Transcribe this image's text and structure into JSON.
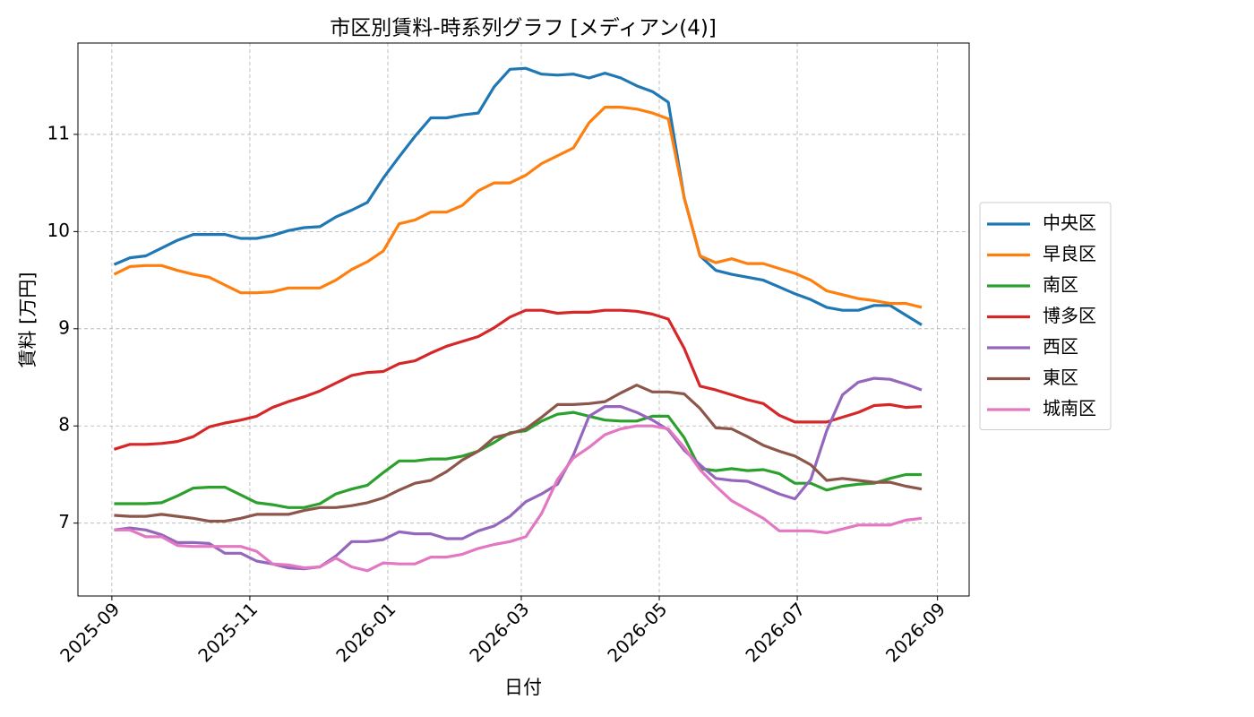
{
  "chart_data": {
    "type": "line",
    "title": "市区別賃料-時系列グラフ [メディアン(4)]",
    "xlabel": "日付",
    "ylabel": "賃料 [万円]",
    "x": [
      "2025-09-02",
      "2025-09-09",
      "2025-09-16",
      "2025-09-23",
      "2025-09-30",
      "2025-10-07",
      "2025-10-14",
      "2025-10-21",
      "2025-10-28",
      "2025-11-04",
      "2025-11-11",
      "2025-11-18",
      "2025-11-25",
      "2025-12-02",
      "2025-12-09",
      "2025-12-16",
      "2025-12-23",
      "2025-12-30",
      "2026-01-06",
      "2026-01-13",
      "2026-01-20",
      "2026-01-27",
      "2026-02-03",
      "2026-02-10",
      "2026-02-17",
      "2026-02-24",
      "2026-03-03",
      "2026-03-10",
      "2026-03-17",
      "2026-03-24",
      "2026-03-31",
      "2026-04-07",
      "2026-04-14",
      "2026-04-21",
      "2026-04-28",
      "2026-05-05",
      "2026-05-12",
      "2026-05-19",
      "2026-05-26",
      "2026-06-02",
      "2026-06-09",
      "2026-06-16",
      "2026-06-23",
      "2026-06-30",
      "2026-07-07",
      "2026-07-14",
      "2026-07-21",
      "2026-07-28",
      "2026-08-04",
      "2026-08-11",
      "2026-08-18",
      "2026-08-25"
    ],
    "series": [
      {
        "name": "中央区",
        "color": "#1f77b4",
        "values": [
          9.66,
          9.73,
          9.75,
          9.83,
          9.91,
          9.97,
          9.97,
          9.97,
          9.93,
          9.93,
          9.96,
          10.01,
          10.04,
          10.05,
          10.15,
          10.22,
          10.3,
          10.55,
          10.77,
          10.98,
          11.17,
          11.17,
          11.2,
          11.22,
          11.49,
          11.67,
          11.68,
          11.62,
          11.61,
          11.62,
          11.58,
          11.63,
          11.58,
          11.5,
          11.44,
          11.33,
          10.35,
          9.75,
          9.6,
          9.56,
          9.53,
          9.5,
          9.43,
          9.36,
          9.3,
          9.22,
          9.19,
          9.19,
          9.24,
          9.24,
          9.14,
          9.04
        ]
      },
      {
        "name": "早良区",
        "color": "#ff7f0e",
        "values": [
          9.56,
          9.64,
          9.65,
          9.65,
          9.6,
          9.56,
          9.53,
          9.45,
          9.37,
          9.37,
          9.38,
          9.42,
          9.42,
          9.42,
          9.5,
          9.61,
          9.69,
          9.8,
          10.08,
          10.12,
          10.2,
          10.2,
          10.27,
          10.42,
          10.5,
          10.5,
          10.58,
          10.7,
          10.78,
          10.86,
          11.12,
          11.28,
          11.28,
          11.26,
          11.22,
          11.16,
          10.35,
          9.75,
          9.68,
          9.72,
          9.67,
          9.67,
          9.62,
          9.57,
          9.5,
          9.39,
          9.35,
          9.31,
          9.29,
          9.26,
          9.26,
          9.22
        ]
      },
      {
        "name": "南区",
        "color": "#2ca02c",
        "values": [
          7.2,
          7.2,
          7.2,
          7.21,
          7.28,
          7.36,
          7.37,
          7.37,
          7.29,
          7.21,
          7.19,
          7.16,
          7.16,
          7.2,
          7.3,
          7.35,
          7.39,
          7.52,
          7.64,
          7.64,
          7.66,
          7.66,
          7.69,
          7.74,
          7.83,
          7.93,
          7.95,
          8.05,
          8.12,
          8.14,
          8.1,
          8.06,
          8.05,
          8.05,
          8.1,
          8.1,
          7.88,
          7.56,
          7.54,
          7.56,
          7.54,
          7.55,
          7.51,
          7.41,
          7.41,
          7.34,
          7.38,
          7.4,
          7.41,
          7.46,
          7.5,
          7.5
        ]
      },
      {
        "name": "博多区",
        "color": "#d62728",
        "values": [
          7.76,
          7.81,
          7.81,
          7.82,
          7.84,
          7.89,
          7.99,
          8.03,
          8.06,
          8.1,
          8.19,
          8.25,
          8.3,
          8.36,
          8.44,
          8.52,
          8.55,
          8.56,
          8.64,
          8.67,
          8.75,
          8.82,
          8.87,
          8.92,
          9.01,
          9.12,
          9.19,
          9.19,
          9.16,
          9.17,
          9.17,
          9.19,
          9.19,
          9.18,
          9.15,
          9.1,
          8.8,
          8.41,
          8.37,
          8.32,
          8.27,
          8.23,
          8.11,
          8.04,
          8.04,
          8.04,
          8.09,
          8.14,
          8.21,
          8.22,
          8.19,
          8.2
        ]
      },
      {
        "name": "西区",
        "color": "#9467bd",
        "values": [
          6.93,
          6.95,
          6.93,
          6.88,
          6.8,
          6.8,
          6.79,
          6.69,
          6.69,
          6.61,
          6.58,
          6.54,
          6.53,
          6.55,
          6.66,
          6.81,
          6.81,
          6.83,
          6.91,
          6.89,
          6.89,
          6.84,
          6.84,
          6.92,
          6.97,
          7.07,
          7.22,
          7.3,
          7.4,
          7.7,
          8.1,
          8.2,
          8.2,
          8.14,
          8.06,
          7.96,
          7.75,
          7.6,
          7.46,
          7.44,
          7.43,
          7.37,
          7.3,
          7.25,
          7.45,
          7.95,
          8.32,
          8.45,
          8.49,
          8.48,
          8.43,
          8.37
        ]
      },
      {
        "name": "東区",
        "color": "#8c564b",
        "values": [
          7.08,
          7.07,
          7.07,
          7.09,
          7.07,
          7.05,
          7.02,
          7.02,
          7.05,
          7.09,
          7.09,
          7.09,
          7.13,
          7.16,
          7.16,
          7.18,
          7.21,
          7.26,
          7.34,
          7.41,
          7.44,
          7.53,
          7.65,
          7.74,
          7.88,
          7.92,
          7.97,
          8.09,
          8.22,
          8.22,
          8.23,
          8.25,
          8.34,
          8.42,
          8.35,
          8.35,
          8.33,
          8.18,
          7.98,
          7.97,
          7.89,
          7.8,
          7.74,
          7.69,
          7.6,
          7.44,
          7.46,
          7.44,
          7.42,
          7.42,
          7.38,
          7.35
        ]
      },
      {
        "name": "城南区",
        "color": "#e377c2",
        "values": [
          6.93,
          6.93,
          6.86,
          6.86,
          6.77,
          6.76,
          6.76,
          6.76,
          6.76,
          6.71,
          6.58,
          6.57,
          6.54,
          6.55,
          6.64,
          6.55,
          6.51,
          6.59,
          6.58,
          6.58,
          6.65,
          6.65,
          6.68,
          6.74,
          6.78,
          6.81,
          6.86,
          7.1,
          7.45,
          7.67,
          7.78,
          7.91,
          7.97,
          8.0,
          8.0,
          7.97,
          7.78,
          7.55,
          7.38,
          7.23,
          7.14,
          7.05,
          6.92,
          6.92,
          6.92,
          6.9,
          6.94,
          6.98,
          6.98,
          6.98,
          7.03,
          7.05
        ]
      }
    ],
    "xlim": [
      "2025-08-17",
      "2026-09-15"
    ],
    "xticks": [
      "2025-09",
      "2025-11",
      "2026-01",
      "2026-03",
      "2026-05",
      "2026-07",
      "2026-09"
    ],
    "ylim": [
      6.25,
      11.94
    ],
    "yticks": [
      7,
      8,
      9,
      10,
      11
    ],
    "grid": true,
    "legend": "right"
  }
}
